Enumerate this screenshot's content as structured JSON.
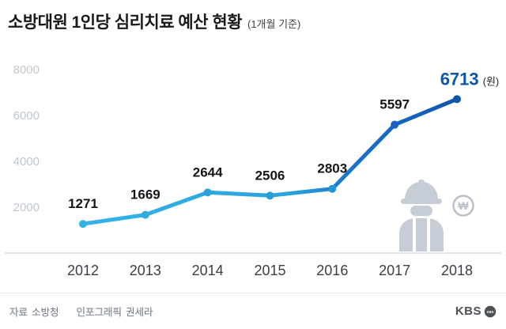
{
  "header": {
    "title": "소방대원 1인당 심리치료 예산 현황",
    "subtitle": "(1개월 기준)"
  },
  "chart_data": {
    "type": "line",
    "title": "소방대원 1인당 심리치료 예산 현황 (1개월 기준)",
    "categories": [
      "2012",
      "2013",
      "2014",
      "2015",
      "2016",
      "2017",
      "2018"
    ],
    "values": [
      1271,
      1669,
      2644,
      2506,
      2803,
      5597,
      6713
    ],
    "unit_label": "(원)",
    "xlabel": "",
    "ylabel": "",
    "yticks": [
      2000,
      4000,
      6000,
      8000
    ],
    "ylim": [
      0,
      8000
    ],
    "grid": false,
    "legend": "none",
    "line_width": 5,
    "gradient_stops": [
      {
        "offset": "0%",
        "color": "#36b3e6"
      },
      {
        "offset": "55%",
        "color": "#2aa3db"
      },
      {
        "offset": "72%",
        "color": "#1a73c9"
      },
      {
        "offset": "100%",
        "color": "#0e55ad"
      }
    ],
    "point_colors": [
      "#35b1e4",
      "#31abe0",
      "#2ca4db",
      "#289ed7",
      "#2497d3",
      "#1463c0",
      "#0e55ad"
    ],
    "value_label_color": "#14171a",
    "highlight_color": "#0d55a6",
    "axis_line_color": "#d9dde2",
    "ytick_color": "#c0c7ce",
    "xtick_color": "#3b4046"
  },
  "icons": {
    "firefighter": "firefighter-icon",
    "won_badge": "won-circle-icon",
    "won_symbol": "₩",
    "icon_color": "#c7cdd6",
    "badge_color": "#b9c0ca"
  },
  "footer": {
    "source_label": "자료",
    "source_value": "소방청",
    "credit_label": "인포그래픽",
    "credit_value": "권세라",
    "logo_text": "KBS",
    "logo_emblem_text": "KBS"
  }
}
